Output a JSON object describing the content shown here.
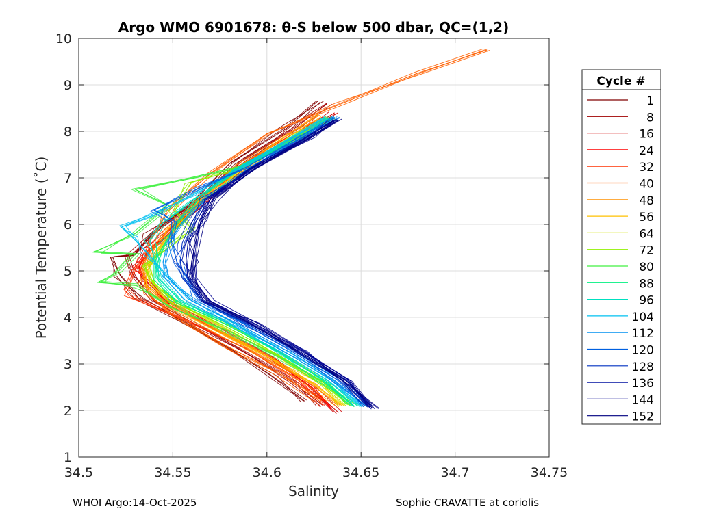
{
  "chart_data": {
    "type": "line",
    "title": "Argo WMO 6901678: θ-S below 500 dbar,  QC=(1,2)",
    "xlabel": "Salinity",
    "ylabel": "Potential Temperature (˚C)",
    "xlim": [
      34.5,
      34.75
    ],
    "ylim": [
      1,
      10
    ],
    "xticks": [
      "34.5",
      "34.55",
      "34.6",
      "34.65",
      "34.7",
      "34.75"
    ],
    "yticks": [
      "1",
      "2",
      "3",
      "4",
      "5",
      "6",
      "7",
      "8",
      "9",
      "10"
    ],
    "grid": true,
    "legend": {
      "title": "Cycle #",
      "placement": "right, outside plot",
      "entries": [
        "1",
        "8",
        "16",
        "24",
        "32",
        "40",
        "48",
        "56",
        "64",
        "72",
        "80",
        "88",
        "96",
        "104",
        "112",
        "120",
        "128",
        "136",
        "144",
        "152"
      ]
    },
    "series": [
      {
        "name": "1",
        "color": "#800000",
        "s": [
          34.627,
          34.61,
          34.58,
          34.558,
          34.538,
          34.53,
          34.518,
          34.522,
          34.532,
          34.556,
          34.58,
          34.602,
          34.62
        ],
        "t": [
          8.65,
          8.05,
          7.3,
          6.4,
          5.8,
          5.35,
          5.3,
          4.9,
          4.4,
          3.9,
          3.35,
          2.75,
          2.2
        ]
      },
      {
        "name": "8",
        "color": "#a00000",
        "s": [
          34.632,
          34.616,
          34.588,
          34.562,
          34.542,
          34.532,
          34.527,
          34.53,
          34.54,
          34.564,
          34.59,
          34.612,
          34.63
        ],
        "t": [
          8.6,
          8.1,
          7.4,
          6.5,
          5.9,
          5.5,
          5.3,
          4.9,
          4.35,
          3.8,
          3.2,
          2.65,
          2.1
        ]
      },
      {
        "name": "16",
        "color": "#d00000",
        "s": [
          34.636,
          34.62,
          34.592,
          34.566,
          34.548,
          34.537,
          34.532,
          34.535,
          34.548,
          34.574,
          34.6,
          34.622,
          34.638
        ],
        "t": [
          8.4,
          8.0,
          7.3,
          6.4,
          5.8,
          5.45,
          5.1,
          4.8,
          4.3,
          3.75,
          3.15,
          2.55,
          1.95
        ]
      },
      {
        "name": "24",
        "color": "#ff0000",
        "s": [
          34.63,
          34.614,
          34.588,
          34.563,
          34.546,
          34.536,
          34.532,
          34.536,
          34.55,
          34.576,
          34.602,
          34.624,
          34.634
        ],
        "t": [
          8.3,
          7.9,
          7.25,
          6.4,
          5.8,
          5.4,
          5.05,
          4.7,
          4.25,
          3.7,
          3.1,
          2.5,
          2.05
        ]
      },
      {
        "name": "32",
        "color": "#ff3000",
        "s": [
          34.625,
          34.61,
          34.584,
          34.56,
          34.545,
          34.535,
          34.528,
          34.524,
          34.528,
          34.556,
          34.59,
          34.618,
          34.63
        ],
        "t": [
          8.2,
          7.85,
          7.2,
          6.3,
          5.7,
          5.3,
          5.0,
          4.6,
          4.45,
          3.95,
          3.3,
          2.65,
          2.1
        ]
      },
      {
        "name": "40",
        "color": "#ff6000",
        "s": [
          34.717,
          34.68,
          34.64,
          34.6,
          34.57,
          34.548,
          34.537,
          34.533,
          34.537,
          34.552,
          34.578,
          34.606,
          34.628
        ],
        "t": [
          9.75,
          9.25,
          8.6,
          7.95,
          7.1,
          6.3,
          5.6,
          5.0,
          4.5,
          4.0,
          3.4,
          2.8,
          2.2
        ]
      },
      {
        "name": "48",
        "color": "#ff9000",
        "s": [
          34.628,
          34.612,
          34.585,
          34.562,
          34.548,
          34.54,
          34.534,
          34.535,
          34.548,
          34.572,
          34.6,
          34.624,
          34.638
        ],
        "t": [
          8.35,
          7.95,
          7.25,
          6.5,
          5.9,
          5.45,
          5.05,
          4.7,
          4.25,
          3.75,
          3.15,
          2.55,
          2.1
        ]
      },
      {
        "name": "56",
        "color": "#ffc000",
        "s": [
          34.63,
          34.614,
          34.586,
          34.562,
          34.55,
          34.542,
          34.537,
          34.538,
          34.55,
          34.574,
          34.602,
          34.626,
          34.64
        ],
        "t": [
          8.3,
          7.9,
          7.2,
          6.45,
          5.9,
          5.45,
          5.05,
          4.7,
          4.25,
          3.75,
          3.15,
          2.55,
          2.1
        ]
      },
      {
        "name": "64",
        "color": "#d0e000",
        "s": [
          34.632,
          34.616,
          34.588,
          34.565,
          34.552,
          34.544,
          34.538,
          34.54,
          34.552,
          34.576,
          34.604,
          34.628,
          34.642
        ],
        "t": [
          8.3,
          7.9,
          7.2,
          6.5,
          5.95,
          5.5,
          5.1,
          4.75,
          4.3,
          3.8,
          3.2,
          2.6,
          2.1
        ]
      },
      {
        "name": "72",
        "color": "#90f000",
        "s": [
          34.632,
          34.615,
          34.585,
          34.56,
          34.55,
          34.56,
          34.548,
          34.535,
          34.54,
          34.552,
          34.578,
          34.606,
          34.63,
          34.644
        ],
        "t": [
          8.25,
          7.85,
          7.2,
          6.9,
          6.3,
          5.9,
          5.5,
          5.1,
          4.7,
          4.3,
          3.8,
          3.2,
          2.6,
          2.1
        ]
      },
      {
        "name": "80",
        "color": "#40f040",
        "s": [
          34.635,
          34.618,
          34.588,
          34.562,
          34.53,
          34.548,
          34.53,
          34.508,
          34.53,
          34.52,
          34.51,
          34.53,
          34.538,
          34.55,
          34.58,
          34.608,
          34.632,
          34.646
        ],
        "t": [
          8.3,
          7.9,
          7.25,
          7.0,
          6.75,
          6.4,
          5.8,
          5.4,
          5.35,
          4.95,
          4.75,
          4.7,
          4.5,
          4.2,
          3.7,
          3.1,
          2.55,
          2.1
        ]
      },
      {
        "name": "88",
        "color": "#00f080",
        "s": [
          34.634,
          34.618,
          34.588,
          34.564,
          34.552,
          34.545,
          34.54,
          34.54,
          34.552,
          34.578,
          34.606,
          34.63,
          34.646
        ],
        "t": [
          8.3,
          7.9,
          7.25,
          6.55,
          6.0,
          5.55,
          5.15,
          4.8,
          4.35,
          3.85,
          3.25,
          2.65,
          2.1
        ]
      },
      {
        "name": "96",
        "color": "#00e0c0",
        "s": [
          34.633,
          34.616,
          34.586,
          34.56,
          34.545,
          34.538,
          34.54,
          34.542,
          34.554,
          34.58,
          34.608,
          34.632,
          34.648
        ],
        "t": [
          8.3,
          7.9,
          7.2,
          6.5,
          6.05,
          5.65,
          5.25,
          4.85,
          4.35,
          3.85,
          3.25,
          2.65,
          2.1
        ]
      },
      {
        "name": "104",
        "color": "#00c0f0",
        "s": [
          34.632,
          34.615,
          34.585,
          34.558,
          34.54,
          34.523,
          34.528,
          34.536,
          34.545,
          34.558,
          34.584,
          34.61,
          34.634,
          34.65
        ],
        "t": [
          8.3,
          7.9,
          7.2,
          6.6,
          6.2,
          5.95,
          5.75,
          5.4,
          4.95,
          4.4,
          3.85,
          3.25,
          2.65,
          2.1
        ]
      },
      {
        "name": "112",
        "color": "#0090f0",
        "s": [
          34.636,
          34.62,
          34.59,
          34.566,
          34.555,
          34.548,
          34.546,
          34.548,
          34.56,
          34.585,
          34.612,
          34.636,
          34.652
        ],
        "t": [
          8.3,
          7.9,
          7.2,
          6.55,
          6.05,
          5.6,
          5.2,
          4.85,
          4.35,
          3.85,
          3.25,
          2.65,
          2.1
        ]
      },
      {
        "name": "120",
        "color": "#0060e0",
        "s": [
          34.636,
          34.62,
          34.59,
          34.565,
          34.552,
          34.54,
          34.552,
          34.55,
          34.552,
          34.564,
          34.588,
          34.614,
          34.638,
          34.652
        ],
        "t": [
          8.3,
          7.9,
          7.25,
          6.8,
          6.55,
          6.3,
          6.05,
          5.6,
          5.2,
          4.4,
          3.85,
          3.25,
          2.65,
          2.1
        ]
      },
      {
        "name": "128",
        "color": "#0030c0",
        "s": [
          34.636,
          34.62,
          34.592,
          34.568,
          34.56,
          34.555,
          34.554,
          34.556,
          34.566,
          34.59,
          34.616,
          34.64,
          34.654
        ],
        "t": [
          8.25,
          7.85,
          7.2,
          6.55,
          6.05,
          5.6,
          5.2,
          4.85,
          4.35,
          3.85,
          3.25,
          2.65,
          2.1
        ]
      },
      {
        "name": "136",
        "color": "#0010a0",
        "s": [
          34.636,
          34.62,
          34.592,
          34.57,
          34.562,
          34.558,
          34.557,
          34.558,
          34.568,
          34.592,
          34.618,
          34.642,
          34.655
        ],
        "t": [
          8.25,
          7.85,
          7.2,
          6.55,
          6.05,
          5.6,
          5.2,
          4.85,
          4.35,
          3.85,
          3.25,
          2.65,
          2.05
        ]
      },
      {
        "name": "144",
        "color": "#000090",
        "s": [
          34.637,
          34.622,
          34.594,
          34.572,
          34.565,
          34.562,
          34.56,
          34.56,
          34.57,
          34.594,
          34.62,
          34.644,
          34.656
        ],
        "t": [
          8.25,
          7.85,
          7.2,
          6.6,
          6.1,
          5.6,
          5.2,
          4.85,
          4.35,
          3.85,
          3.25,
          2.65,
          2.05
        ]
      },
      {
        "name": "152",
        "color": "#000080",
        "s": [
          34.638,
          34.622,
          34.594,
          34.572,
          34.565,
          34.562,
          34.56,
          34.559,
          34.568,
          34.592,
          34.618,
          34.642,
          34.656
        ],
        "t": [
          8.25,
          7.85,
          7.2,
          6.55,
          6.05,
          5.6,
          5.2,
          4.85,
          4.35,
          3.85,
          3.25,
          2.65,
          2.05
        ]
      }
    ]
  },
  "footer": {
    "left": "WHOI Argo:14-Oct-2025",
    "right": "Sophie CRAVATTE at coriolis"
  }
}
